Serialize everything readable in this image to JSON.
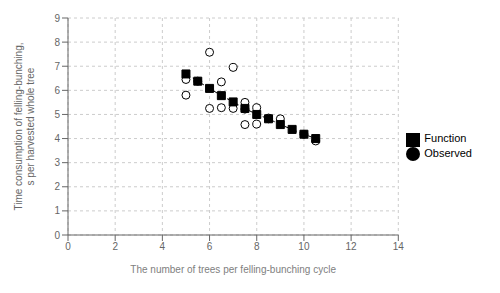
{
  "chart_data": {
    "type": "scatter",
    "xlabel": "The number of trees per felling-bunching cycle",
    "ylabel": "Time consumption of felling-bunching,\ns per harvested whole tree",
    "xlim": [
      0,
      14
    ],
    "ylim": [
      0,
      9
    ],
    "xticks": [
      0,
      2,
      4,
      6,
      8,
      10,
      12,
      14
    ],
    "yticks": [
      0,
      1,
      2,
      3,
      4,
      5,
      6,
      7,
      8,
      9
    ],
    "grid": true,
    "legend": "right",
    "series": [
      {
        "name": "Observed",
        "type": "scatter",
        "color": "black",
        "marker": "circle",
        "x": [
          5.0,
          5.0,
          5.5,
          6.0,
          6.0,
          6.5,
          6.5,
          7.0,
          7.0,
          7.5,
          7.5,
          7.5,
          8.0,
          8.0,
          8.5,
          8.5,
          9.0,
          10.0,
          10.5
        ],
        "values": [
          5.8,
          6.45,
          6.38,
          7.58,
          5.25,
          5.28,
          6.35,
          5.25,
          6.95,
          5.5,
          5.22,
          4.58,
          5.28,
          4.6,
          4.82,
          4.85,
          4.82,
          4.18,
          3.9
        ]
      },
      {
        "name": "Function",
        "type": "line",
        "color": "black",
        "marker": "square",
        "line_style": "dashed",
        "x": [
          5.0,
          5.5,
          6.0,
          6.5,
          7.0,
          7.5,
          8.0,
          8.5,
          9.0,
          9.5,
          10.0,
          10.5
        ],
        "values": [
          6.68,
          6.38,
          6.08,
          5.78,
          5.52,
          5.25,
          5.0,
          4.82,
          4.58,
          4.38,
          4.18,
          4.0
        ]
      }
    ]
  }
}
